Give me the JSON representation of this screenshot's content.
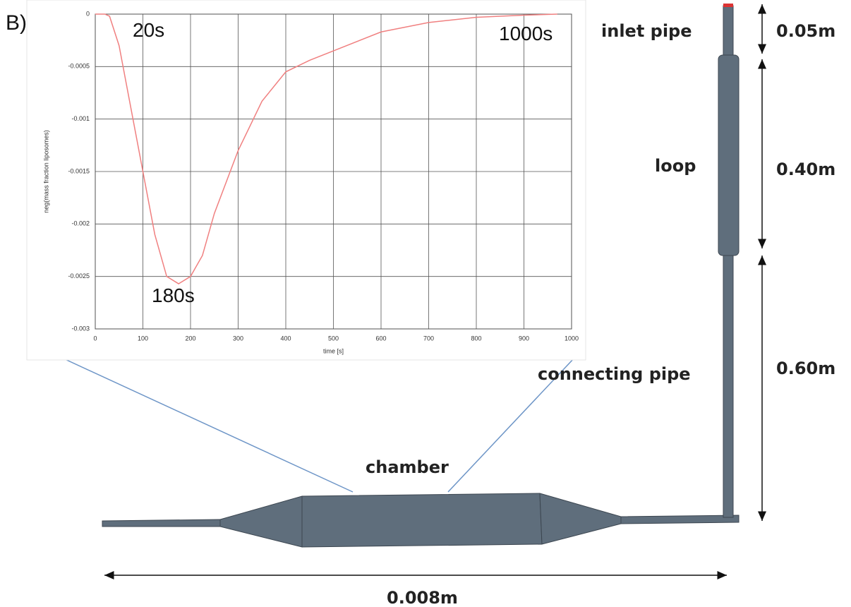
{
  "panel_label": "B)",
  "chart_data": {
    "type": "line",
    "x_label": "time [s]",
    "y_label": "neg(mass fraction liposomes)",
    "annotations": [
      "20s",
      "180s",
      "1000s"
    ],
    "x": [
      0,
      20,
      30,
      50,
      75,
      100,
      125,
      150,
      175,
      200,
      225,
      250,
      275,
      300,
      350,
      400,
      450,
      500,
      600,
      700,
      800,
      900,
      970
    ],
    "values": [
      0,
      0,
      -2e-05,
      -0.0003,
      -0.0009,
      -0.0015,
      -0.0021,
      -0.0025,
      -0.00257,
      -0.0025,
      -0.0023,
      -0.0019,
      -0.0016,
      -0.0013,
      -0.00083,
      -0.00055,
      -0.00044,
      -0.00035,
      -0.00017,
      -8e-05,
      -3e-05,
      -1e-05,
      0
    ],
    "color": "#f08080",
    "xlim": [
      0,
      1000
    ],
    "xticks": [
      0,
      100,
      200,
      300,
      400,
      500,
      600,
      700,
      800,
      900,
      1000
    ],
    "ylim": [
      -0.003,
      0
    ],
    "yticks": [
      0,
      -0.0005,
      -0.001,
      -0.0015,
      -0.002,
      -0.0025,
      -0.003
    ],
    "grid": true
  },
  "diagram": {
    "inlet": "inlet pipe",
    "loop": "loop",
    "connecting": "connecting pipe",
    "chamber": "chamber",
    "dim_inlet": "0.05m",
    "dim_loop": "0.40m",
    "dim_connecting": "0.60m",
    "dim_width": "0.008m"
  }
}
